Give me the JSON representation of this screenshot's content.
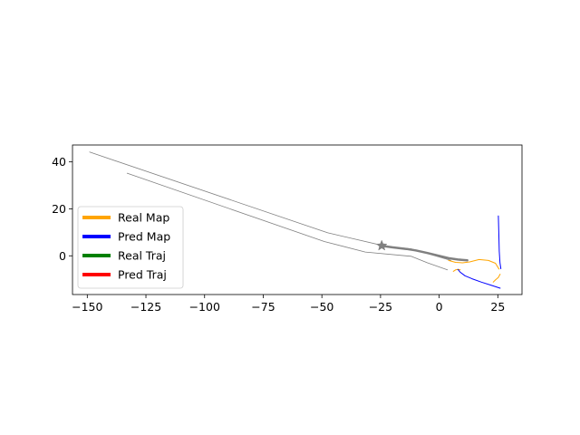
{
  "chart_data": {
    "type": "line",
    "title": "",
    "xlabel": "",
    "ylabel": "",
    "xlim": [
      -156.3,
      35.3
    ],
    "ylim": [
      -16.5,
      47.2
    ],
    "xticks": [
      -150,
      -125,
      -100,
      -75,
      -50,
      -25,
      0,
      25
    ],
    "yticks": [
      0,
      20,
      40
    ],
    "grid": false,
    "legend_position": "lower-left",
    "legend": [
      {
        "label": "Real Map",
        "color": "#FFA500"
      },
      {
        "label": "Pred Map",
        "color": "#0000FF"
      },
      {
        "label": "Real Traj",
        "color": "#008000"
      },
      {
        "label": "Pred Traj",
        "color": "#FF0000"
      }
    ],
    "series": [
      {
        "color": "#808080",
        "width": 0.8,
        "x": [
          -149,
          -47.5,
          -22,
          -12,
          5
        ],
        "y": [
          44.2,
          9.8,
          3.9,
          3.0,
          -2.0
        ]
      },
      {
        "color": "#808080",
        "width": 0.8,
        "x": [
          -133,
          -49,
          -31.5,
          -12,
          -5,
          3.5
        ],
        "y": [
          35.2,
          6.1,
          1.6,
          -0.2,
          -3.0,
          -6.0
        ]
      },
      {
        "color": "#808080",
        "width": 2.5,
        "x": [
          -25,
          -20,
          -14,
          -10,
          -5,
          0,
          4,
          8,
          12
        ],
        "y": [
          4.3,
          3.6,
          2.9,
          2.3,
          1.2,
          0.0,
          -1.0,
          -1.6,
          -1.9
        ]
      },
      {
        "color": "#FFA500",
        "width": 1.0,
        "x": [
          4,
          7,
          10,
          13,
          17,
          21,
          24,
          25.5
        ],
        "y": [
          -2.0,
          -2.8,
          -3.0,
          -2.6,
          -1.6,
          -2.0,
          -3.2,
          -5.6
        ]
      },
      {
        "color": "#FFA500",
        "width": 1.0,
        "x": [
          26,
          25.2,
          24,
          23
        ],
        "y": [
          -7.8,
          -9.2,
          -10.3,
          -11.2
        ]
      },
      {
        "color": "#FFA500",
        "width": 1.0,
        "x": [
          6,
          7,
          8,
          9
        ],
        "y": [
          -6.6,
          -6.0,
          -5.8,
          -6.0
        ]
      },
      {
        "color": "#0000FF",
        "width": 1.0,
        "x": [
          25.2,
          25.4,
          25.6,
          25.9,
          26.3
        ],
        "y": [
          17.0,
          10.0,
          2.0,
          -3.0,
          -5.5
        ]
      },
      {
        "color": "#0000FF",
        "width": 1.0,
        "x": [
          8,
          9,
          11,
          14,
          18,
          22,
          26
        ],
        "y": [
          -5.8,
          -7.0,
          -8.5,
          -9.8,
          -11.2,
          -12.5,
          -13.8
        ]
      }
    ],
    "markers": [
      {
        "shape": "star",
        "color": "#808080",
        "x": -24.5,
        "y": 4.3
      }
    ]
  }
}
